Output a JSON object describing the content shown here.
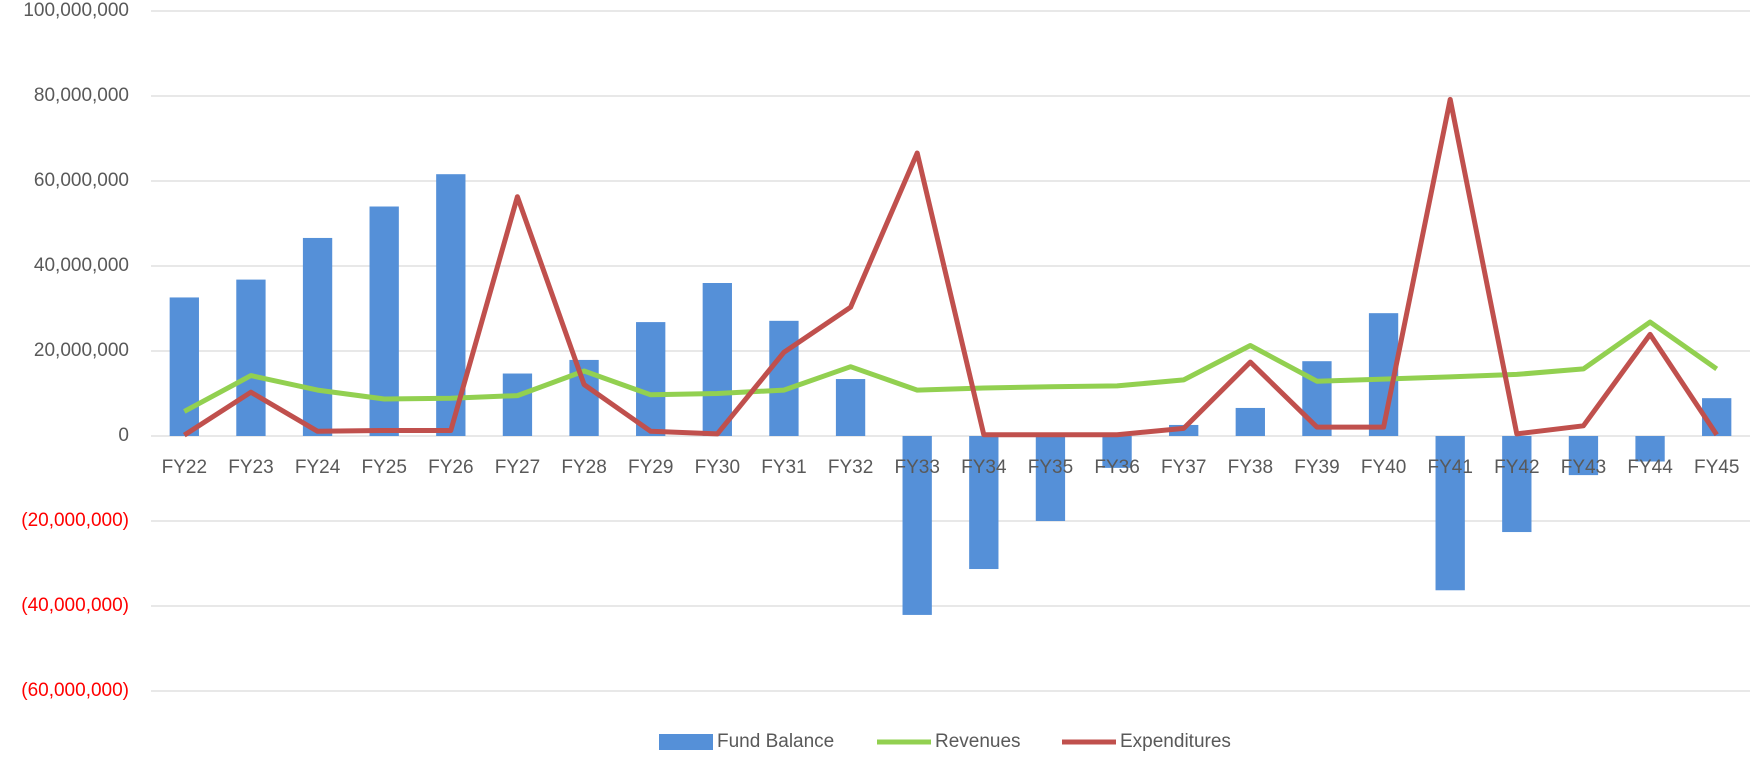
{
  "chart_data": {
    "type": "bar-line",
    "categories": [
      "FY22",
      "FY23",
      "FY24",
      "FY25",
      "FY26",
      "FY27",
      "FY28",
      "FY29",
      "FY30",
      "FY31",
      "FY32",
      "FY33",
      "FY34",
      "FY35",
      "FY36",
      "FY37",
      "FY38",
      "FY39",
      "FY40",
      "FY41",
      "FY42",
      "FY43",
      "FY44",
      "FY45"
    ],
    "series": [
      {
        "name": "Fund Balance",
        "type": "bar",
        "color": "#5590d8",
        "values": [
          32600000,
          36800000,
          46600000,
          54000000,
          61600000,
          14700000,
          17900000,
          26800000,
          36000000,
          27100000,
          13400000,
          -42100000,
          -31300000,
          -20000000,
          -7500000,
          2600000,
          6600000,
          17600000,
          28900000,
          -36300000,
          -22600000,
          -9200000,
          -6000000,
          8900000
        ]
      },
      {
        "name": "Revenues",
        "type": "line",
        "color": "#92d050",
        "values": [
          5800000,
          14200000,
          10800000,
          8700000,
          8900000,
          9500000,
          15300000,
          9700000,
          10000000,
          10800000,
          16300000,
          10800000,
          11300000,
          11600000,
          11800000,
          13200000,
          21300000,
          12900000,
          13400000,
          13900000,
          14500000,
          15800000,
          26800000,
          15800000
        ]
      },
      {
        "name": "Expenditures",
        "type": "line",
        "color": "#c0504d",
        "values": [
          200000,
          10300000,
          1100000,
          1300000,
          1300000,
          56300000,
          12100000,
          1100000,
          500000,
          19700000,
          30300000,
          66600000,
          300000,
          300000,
          300000,
          1800000,
          17400000,
          2100000,
          2100000,
          79200000,
          500000,
          2400000,
          23900000,
          300000
        ]
      }
    ],
    "ylim": [
      -60000000,
      100000000
    ],
    "yticks": [
      {
        "value": -60000000,
        "label": "(60,000,000)"
      },
      {
        "value": -40000000,
        "label": "(40,000,000)"
      },
      {
        "value": -20000000,
        "label": "(20,000,000)"
      },
      0,
      {
        "value": 20000000,
        "label": "20,000,000"
      },
      {
        "value": 40000000,
        "label": "40,000,000"
      },
      {
        "value": 60000000,
        "label": "60,000,000"
      },
      {
        "value": 80000000,
        "label": "80,000,000"
      },
      {
        "value": 100000000,
        "label": "100,000,000"
      }
    ],
    "negative_tick_color": "#ff0000",
    "grid": true,
    "legend": "bottom"
  }
}
